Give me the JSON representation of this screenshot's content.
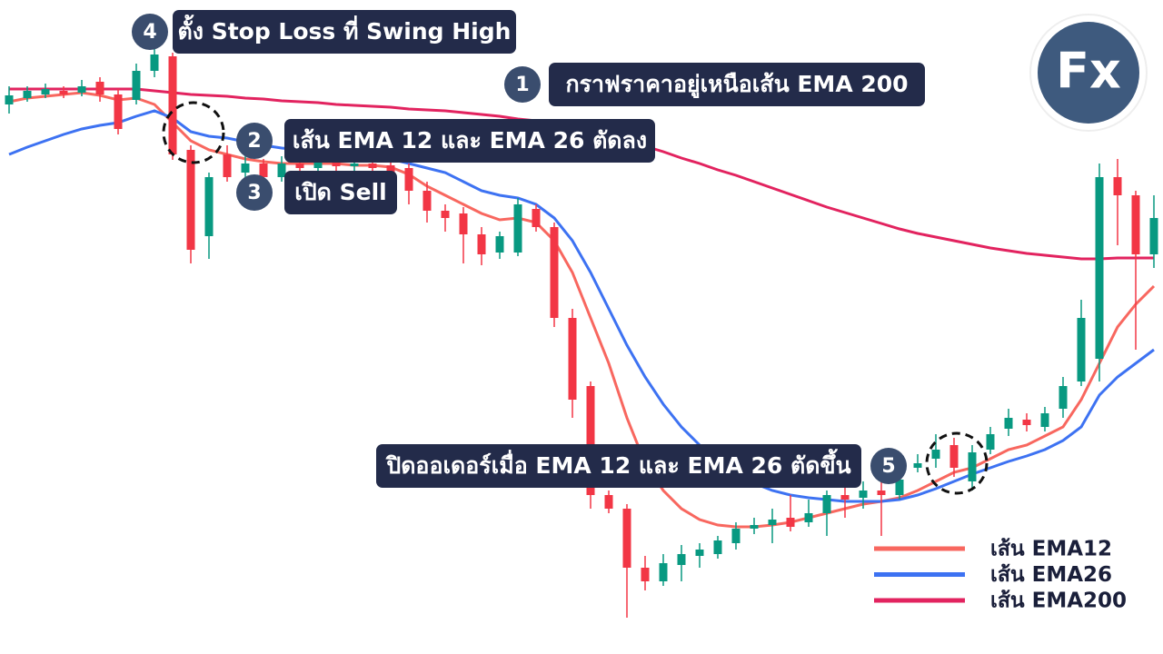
{
  "chart_data": {
    "type": "candlestick",
    "ylim": [
      0,
      72
    ],
    "up_color": "#089981",
    "down_color": "#f23645",
    "open": [
      60.5,
      61.2,
      61.6,
      62,
      61.8,
      63,
      61.6,
      61,
      64.2,
      65.8,
      55.5,
      46,
      55,
      53,
      54,
      52.5,
      54,
      53.5,
      54.2,
      53.7,
      54,
      53.8,
      53.5,
      51,
      48.8,
      48.5,
      46.2,
      44.2,
      44.2,
      49,
      47,
      37,
      29.5,
      17.5,
      16,
      9.5,
      8,
      9.8,
      10.8,
      11,
      12.2,
      13.8,
      14.2,
      15,
      14.5,
      15.5,
      17.5,
      17.2,
      18,
      17.5,
      20.5,
      21.5,
      23,
      19,
      22.5,
      24.8,
      25.8,
      25,
      27,
      30,
      32.5,
      52.5,
      50.5,
      44
    ],
    "high": [
      62.5,
      62.5,
      62.8,
      62.5,
      63.2,
      63.5,
      62.2,
      65,
      66.8,
      66.2,
      56,
      53,
      56,
      55,
      54.5,
      54.8,
      55,
      54.8,
      55,
      55,
      54.5,
      54.5,
      54,
      52,
      49.5,
      49.2,
      47,
      46.5,
      50.2,
      49.5,
      47.5,
      38,
      30,
      18,
      16.5,
      10.8,
      11,
      12,
      12.2,
      13,
      14.5,
      15,
      16,
      17.5,
      17,
      18,
      18.5,
      19,
      19.5,
      20.5,
      22,
      24.2,
      23.8,
      23,
      25,
      27,
      26.5,
      27.2,
      30.5,
      39,
      54,
      54.5,
      51,
      50.5
    ],
    "low": [
      59.5,
      60.8,
      61.2,
      61.2,
      61.4,
      60.8,
      57.2,
      60.5,
      63.5,
      54.4,
      43,
      43.5,
      52,
      52.2,
      51.5,
      52,
      52.8,
      53,
      53.2,
      53,
      52.8,
      52,
      49.5,
      47.5,
      46.5,
      43,
      42.8,
      43.5,
      43.8,
      46.5,
      36,
      26,
      16,
      15.5,
      4,
      7,
      7.5,
      8,
      9.5,
      10.5,
      11.5,
      13.2,
      12.2,
      13.5,
      14,
      13,
      15,
      16,
      13,
      17,
      20,
      20.5,
      19.5,
      18,
      22,
      24,
      24.5,
      24.5,
      26,
      29.5,
      30,
      45,
      33.5,
      42.5
    ],
    "close": [
      61.5,
      62,
      62.2,
      61.6,
      62.5,
      61.6,
      57.8,
      64.2,
      66,
      55,
      44.5,
      52.5,
      52.5,
      54,
      52.5,
      54,
      53.5,
      54.2,
      53.7,
      54,
      53.5,
      53,
      51,
      48.8,
      48,
      46.2,
      44,
      46,
      49.5,
      47,
      37,
      28,
      17.5,
      16,
      9.5,
      8,
      10,
      11,
      11.5,
      12.5,
      13.8,
      14.2,
      14.8,
      14,
      15.5,
      17.5,
      17,
      18,
      17.5,
      19.2,
      21,
      22.5,
      20.5,
      22.2,
      24.2,
      26,
      25.2,
      26.5,
      29.5,
      37,
      52.5,
      50.5,
      44,
      48
    ],
    "series": [
      {
        "name": "เส้น EMA12",
        "color": "#f8675f",
        "values": [
          60.8,
          61.2,
          61.4,
          61.6,
          61.8,
          61.5,
          61,
          61.2,
          60.5,
          58.5,
          56.5,
          55.5,
          55,
          54.5,
          54.2,
          54,
          54,
          54,
          54,
          53.8,
          53.8,
          53.6,
          52.8,
          51.5,
          50.5,
          49.5,
          48.5,
          47.8,
          48,
          47.5,
          45.5,
          42,
          37,
          32,
          26,
          21,
          18,
          16,
          14.8,
          14.2,
          14,
          14,
          14.2,
          14.5,
          15,
          15.5,
          16,
          16.5,
          16.8,
          17.2,
          18,
          19,
          20,
          20.5,
          21.5,
          22.5,
          23,
          24,
          25,
          28,
          32,
          36,
          38.5,
          40.5
        ]
      },
      {
        "name": "เส้น EMA26",
        "color": "#3d72f2",
        "values": [
          55,
          55.8,
          56.5,
          57.2,
          57.8,
          58.2,
          58.5,
          59.2,
          59.8,
          59,
          57.5,
          57,
          56.8,
          56.4,
          56,
          55.7,
          55.5,
          55.3,
          55.2,
          55,
          54.8,
          54.5,
          54,
          53.5,
          53,
          52,
          51,
          50.5,
          50.2,
          49.5,
          48,
          45.5,
          42,
          38,
          34,
          30.5,
          27.5,
          25,
          23,
          21.5,
          20,
          18.8,
          18,
          17.5,
          17.2,
          17,
          16.8,
          16.8,
          16.8,
          17,
          17.5,
          18.2,
          19,
          19.8,
          20.5,
          21.2,
          21.8,
          22.5,
          23.5,
          25,
          28.5,
          30.5,
          32,
          33.5
        ]
      },
      {
        "name": "เส้น EMA200",
        "color": "#e2235f",
        "values": [
          62.2,
          62.2,
          62.2,
          62.2,
          62.2,
          62.2,
          62.2,
          62.2,
          62,
          61.8,
          61.6,
          61.5,
          61.4,
          61.2,
          61.1,
          60.9,
          60.8,
          60.7,
          60.5,
          60.4,
          60.3,
          60.2,
          60,
          59.9,
          59.8,
          59.6,
          59.4,
          59.2,
          58.9,
          58.7,
          58.3,
          57.9,
          57.4,
          56.9,
          56.4,
          55.9,
          55.3,
          54.6,
          54,
          53.3,
          52.7,
          52,
          51.3,
          50.6,
          49.9,
          49.2,
          48.6,
          48,
          47.4,
          46.8,
          46.3,
          45.9,
          45.5,
          45.1,
          44.7,
          44.4,
          44.1,
          43.9,
          43.7,
          43.5,
          43.5,
          43.6,
          43.6,
          43.6
        ]
      }
    ],
    "annotations": [
      {
        "number": "4",
        "text": "ตั้ง Stop Loss ที่ Swing High"
      },
      {
        "number": "1",
        "text": "กราฟราคาอยู่เหนือเส้น EMA 200"
      },
      {
        "number": "2",
        "text": "เส้น EMA 12 และ EMA 26 ตัดลง"
      },
      {
        "number": "3",
        "text": "เปิด Sell"
      },
      {
        "number": "5",
        "text": "ปิดออเดอร์เมื่อ EMA 12 และ EMA 26 ตัดขึ้น"
      }
    ],
    "logo": "Fx"
  }
}
